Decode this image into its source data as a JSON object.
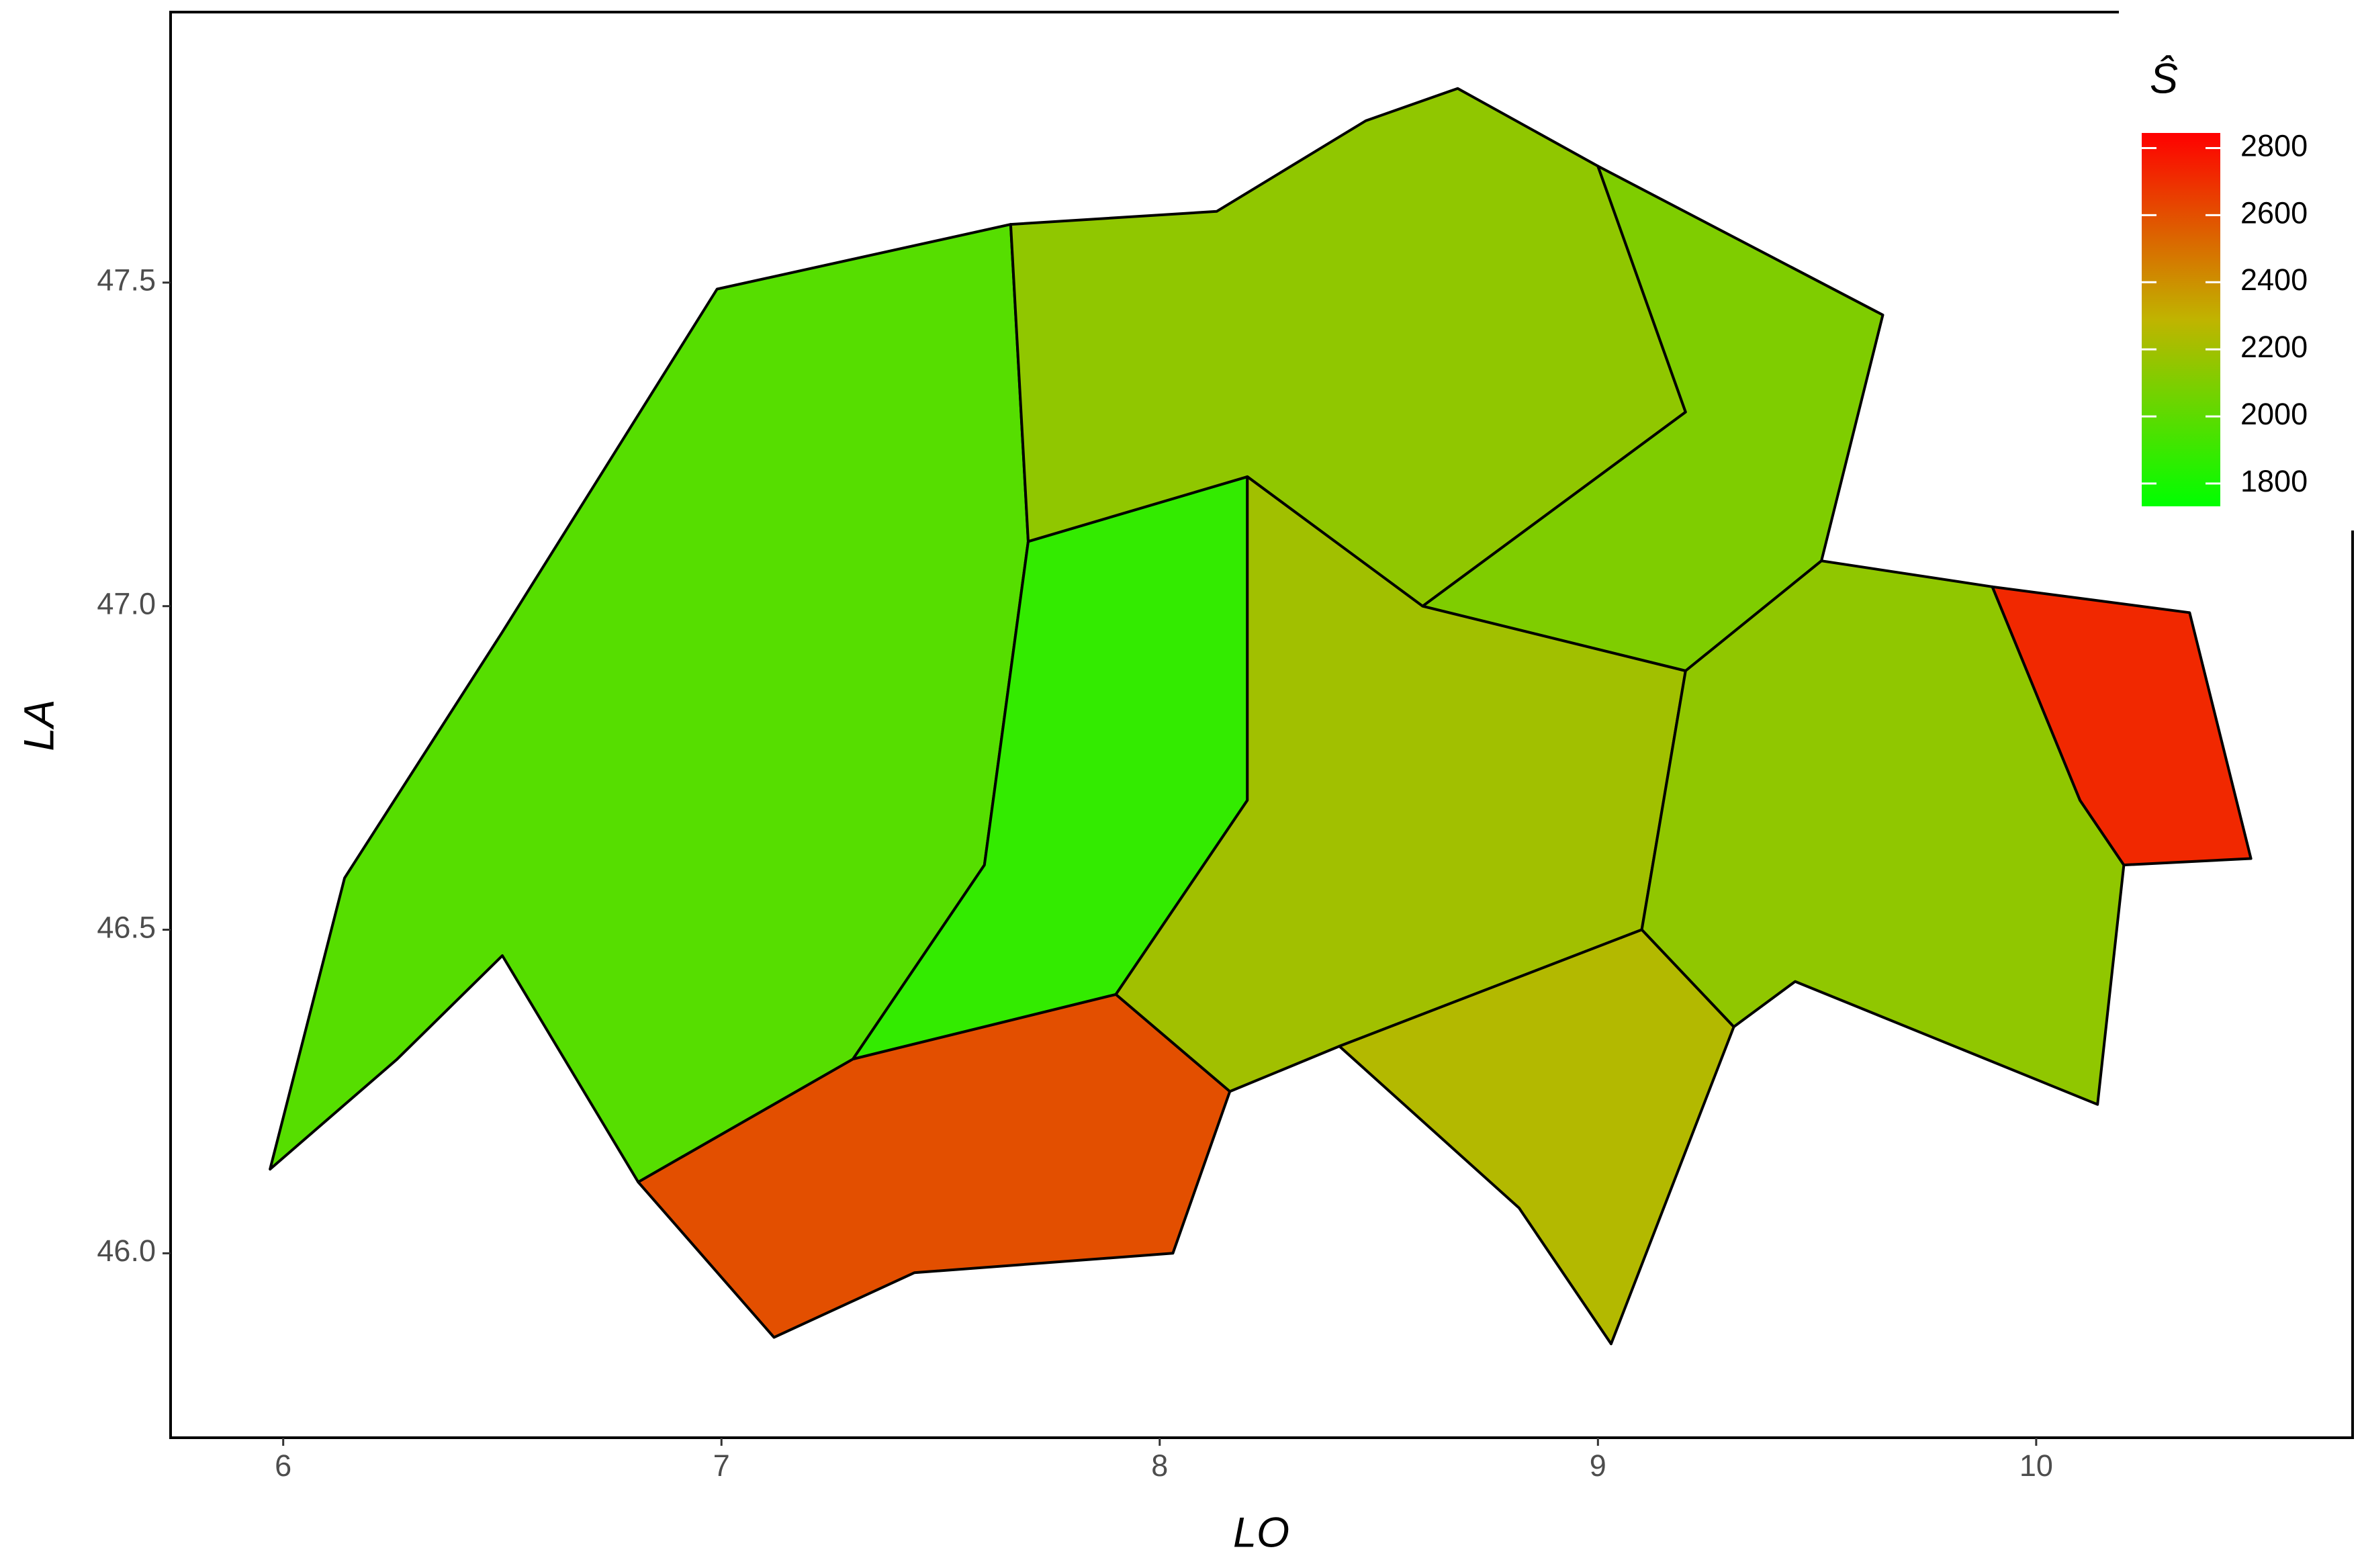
{
  "chart_data": {
    "type": "choropleth",
    "xlabel": "LO",
    "ylabel": "LA",
    "legend_title": "Ŝ",
    "xlim": [
      5.743,
      10.722
    ],
    "ylim": [
      45.715,
      47.918
    ],
    "xticks": [
      6,
      7,
      8,
      9,
      10
    ],
    "yticks": [
      {
        "value": 46,
        "label": "46.0"
      },
      46.5,
      {
        "value": 47,
        "label": "47.0"
      },
      47.5
    ],
    "clim": [
      1732,
      2845
    ],
    "cticks": [
      1800,
      2000,
      2200,
      2400,
      2600,
      2800
    ],
    "colors": [
      "#00ff00",
      "#c0b400",
      "#ff0000"
    ],
    "legend_position": "top-right",
    "regions": [
      {
        "polygon": [
          [
            5.97,
            46.13
          ],
          [
            6.14,
            46.58
          ],
          [
            6.5,
            46.96
          ],
          [
            6.99,
            47.49
          ],
          [
            7.66,
            47.59
          ],
          [
            7.7,
            47.1
          ],
          [
            7.6,
            46.6
          ],
          [
            7.3,
            46.3
          ],
          [
            6.81,
            46.11
          ],
          [
            6.5,
            46.46
          ],
          [
            6.26,
            46.3
          ]
        ],
        "value": 1980
      },
      {
        "polygon": [
          [
            7.7,
            47.1
          ],
          [
            8.2,
            47.2
          ],
          [
            8.2,
            46.7
          ],
          [
            7.9,
            46.4
          ],
          [
            7.3,
            46.3
          ],
          [
            7.6,
            46.6
          ]
        ],
        "value": 1880
      },
      {
        "polygon": [
          [
            7.66,
            47.59
          ],
          [
            8.13,
            47.61
          ],
          [
            8.47,
            47.75
          ],
          [
            8.68,
            47.8
          ],
          [
            9.0,
            47.68
          ],
          [
            9.2,
            47.3
          ],
          [
            8.6,
            47.0
          ],
          [
            8.2,
            47.2
          ],
          [
            7.7,
            47.1
          ]
        ],
        "value": 2150
      },
      {
        "polygon": [
          [
            9.0,
            47.68
          ],
          [
            9.65,
            47.45
          ],
          [
            9.51,
            47.07
          ],
          [
            9.2,
            46.9
          ],
          [
            8.6,
            47.0
          ],
          [
            9.2,
            47.3
          ]
        ],
        "value": 2100
      },
      {
        "polygon": [
          [
            8.2,
            47.2
          ],
          [
            8.6,
            47.0
          ],
          [
            9.2,
            46.9
          ],
          [
            9.1,
            46.5
          ],
          [
            8.41,
            46.32
          ],
          [
            8.16,
            46.25
          ],
          [
            7.9,
            46.4
          ],
          [
            8.2,
            46.7
          ]
        ],
        "value": 2200
      },
      {
        "polygon": [
          [
            9.51,
            47.07
          ],
          [
            9.9,
            47.03
          ],
          [
            10.1,
            46.7
          ],
          [
            10.2,
            46.6
          ],
          [
            10.14,
            46.23
          ],
          [
            9.45,
            46.42
          ],
          [
            9.31,
            46.35
          ],
          [
            9.1,
            46.5
          ],
          [
            9.2,
            46.9
          ]
        ],
        "value": 2150
      },
      {
        "polygon": [
          [
            9.9,
            47.03
          ],
          [
            10.35,
            46.99
          ],
          [
            10.49,
            46.61
          ],
          [
            10.2,
            46.6
          ],
          [
            10.1,
            46.7
          ]
        ],
        "value": 2720
      },
      {
        "polygon": [
          [
            9.31,
            46.35
          ],
          [
            9.03,
            45.86
          ],
          [
            8.82,
            46.07
          ],
          [
            8.41,
            46.32
          ],
          [
            9.1,
            46.5
          ]
        ],
        "value": 2250
      },
      {
        "polygon": [
          [
            7.3,
            46.3
          ],
          [
            7.9,
            46.4
          ],
          [
            8.16,
            46.25
          ],
          [
            8.03,
            46.0
          ],
          [
            7.44,
            45.97
          ],
          [
            7.12,
            45.87
          ],
          [
            6.81,
            46.11
          ]
        ],
        "value": 2600
      }
    ]
  }
}
